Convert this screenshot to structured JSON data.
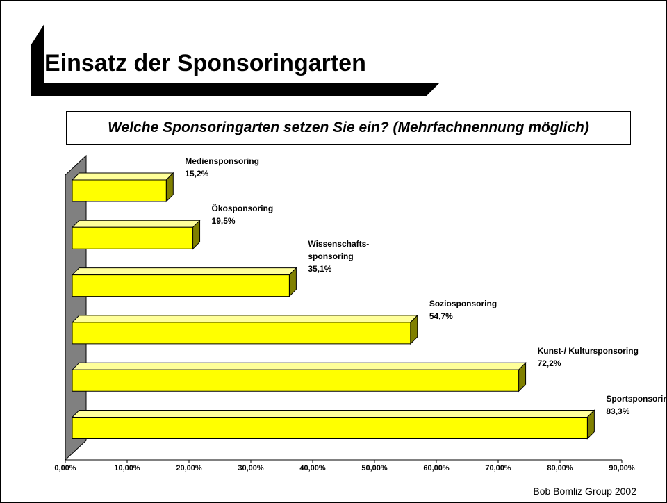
{
  "title": "Einsatz der Sponsoringarten",
  "footer": "Bob Bomliz Group 2002",
  "chart_data": {
    "type": "bar",
    "title": "Welche Sponsoringarten setzen Sie ein? (Mehrfachnennung möglich)",
    "categories": [
      "Mediensponsoring",
      "Ökosponsoring",
      "Wissenschafts-\nsponsoring",
      "Soziosponsoring",
      "Kunst-/ Kultursponsoring",
      "Sportsponsoring"
    ],
    "values": [
      15.2,
      19.5,
      35.1,
      54.7,
      72.2,
      83.3
    ],
    "value_labels": [
      "15,2%",
      "19,5%",
      "35,1%",
      "54,7%",
      "72,2%",
      "83,3%"
    ],
    "color": "#ffff00",
    "xlim": [
      0,
      90
    ],
    "xticks": [
      {
        "value": 0,
        "label": "0,00%"
      },
      {
        "value": 10,
        "label": "10,00%"
      },
      {
        "value": 20,
        "label": "20,00%"
      },
      {
        "value": 30,
        "label": "30,00%"
      },
      {
        "value": 40,
        "label": "40,00%"
      },
      {
        "value": 50,
        "label": "50,00%"
      },
      {
        "value": 60,
        "label": "60,00%"
      },
      {
        "value": 70,
        "label": "70,00%"
      },
      {
        "value": 80,
        "label": "80,00%"
      },
      {
        "value": 90,
        "label": "90,00%"
      }
    ]
  }
}
